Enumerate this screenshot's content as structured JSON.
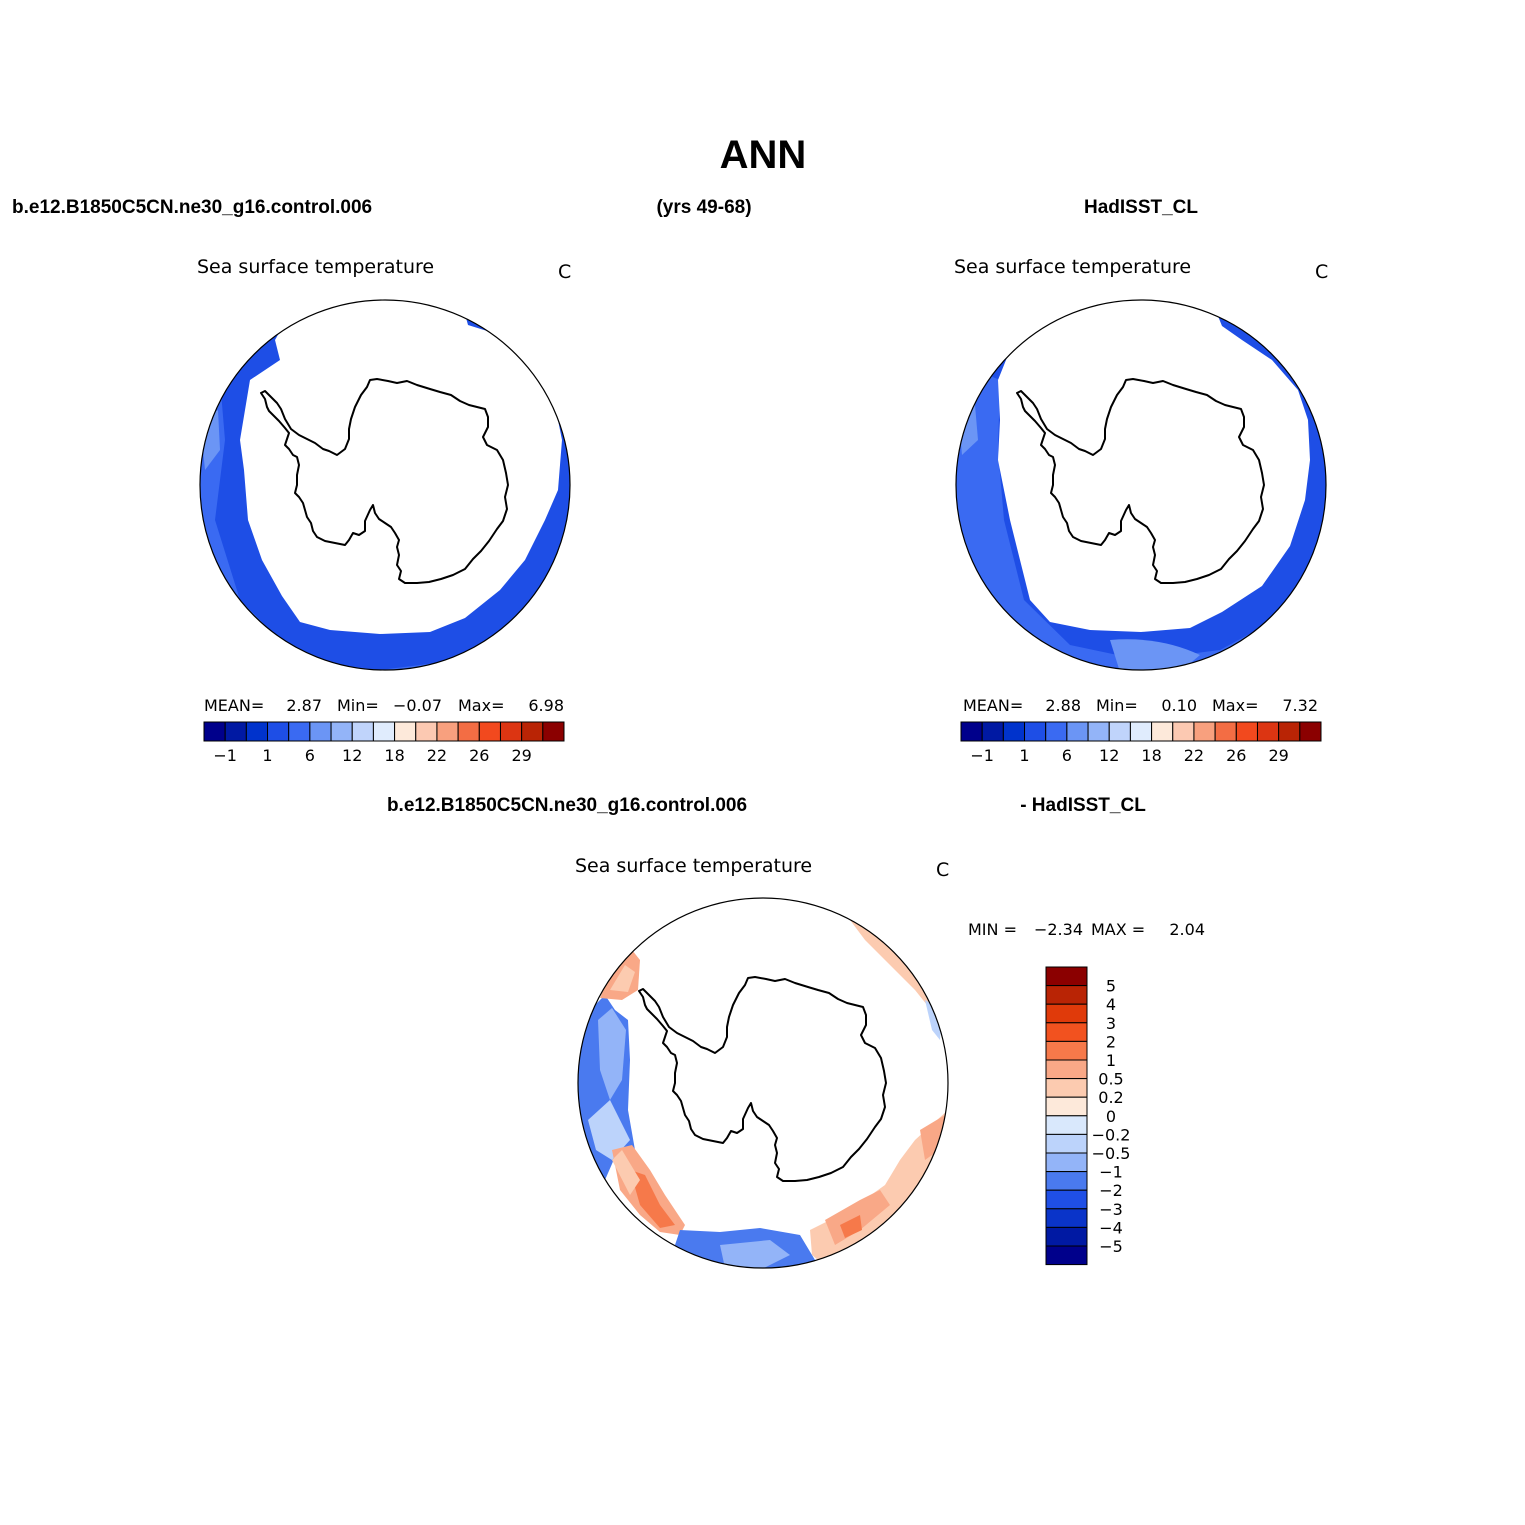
{
  "header": {
    "title": "ANN",
    "case_name": "b.e12.B1850C5CN.ne30_g16.control.006",
    "years": "(yrs 49-68)",
    "obs_name": "HadISST_CL"
  },
  "panels": {
    "model": {
      "variable": "Sea surface temperature",
      "units": "C",
      "stats": {
        "mean_label": "MEAN=",
        "mean": "2.87",
        "min_label": "Min=",
        "min": "−0.07",
        "max_label": "Max=",
        "max": "6.98"
      }
    },
    "obs": {
      "variable": "Sea surface temperature",
      "units": "C",
      "stats": {
        "mean_label": "MEAN=",
        "mean": "2.88",
        "min_label": "Min=",
        "min": "0.10",
        "max_label": "Max=",
        "max": "7.32"
      }
    },
    "diff": {
      "title_left": "b.e12.B1850C5CN.ne30_g16.control.006",
      "title_right": "- HadISST_CL",
      "variable": "Sea surface temperature",
      "units": "C",
      "stats": {
        "min_label": "MIN =",
        "min": "−2.34",
        "max_label": "MAX =",
        "max": "2.04"
      }
    }
  },
  "colorbar_sst": {
    "colors": [
      "#00008b",
      "#0019a3",
      "#0033cc",
      "#1e4ee6",
      "#3a6af2",
      "#6b95f5",
      "#93b4f8",
      "#c0d4fb",
      "#e0ecfd",
      "#fde9da",
      "#fcc9b2",
      "#f8a07e",
      "#f36d44",
      "#f2491e",
      "#dc3512",
      "#b92405",
      "#8b0000"
    ],
    "tick_labels": [
      "−1",
      "1",
      "6",
      "12",
      "18",
      "22",
      "26",
      "29"
    ]
  },
  "colorbar_diff": {
    "colors_top_to_bottom": [
      "#8b0000",
      "#b92405",
      "#e03a0a",
      "#f2521f",
      "#f6794a",
      "#f9a887",
      "#fccbb0",
      "#fde9da",
      "#d9e8fc",
      "#bcd3fb",
      "#93b4f8",
      "#4a7aef",
      "#1f4fe6",
      "#0a34c9",
      "#0019a3",
      "#00008b"
    ],
    "labels_top_to_bottom": [
      "5",
      "4",
      "3",
      "2",
      "1",
      "0.5",
      "0.2",
      "0",
      "−0.2",
      "−0.5",
      "−1",
      "−2",
      "−3",
      "−4",
      "−5"
    ]
  }
}
